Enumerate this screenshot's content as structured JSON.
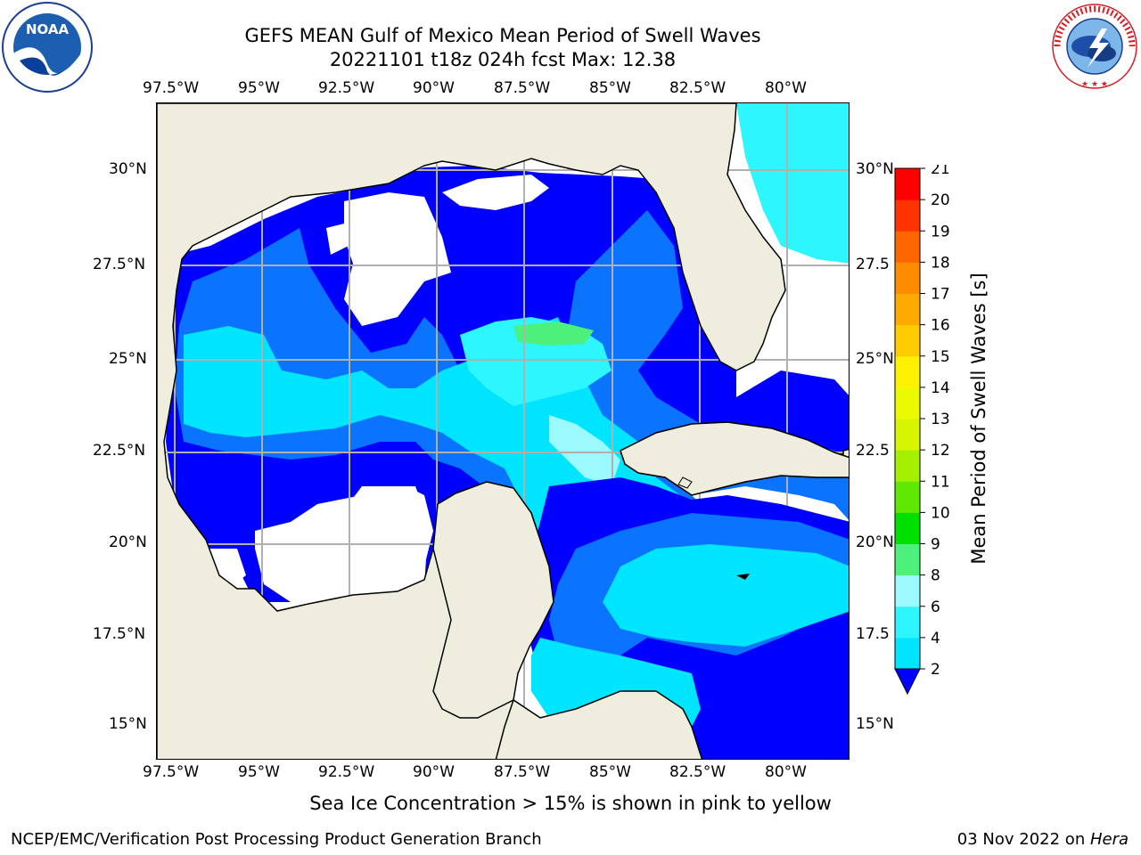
{
  "title": {
    "line1": "GEFS MEAN Gulf of Mexico Mean Period of Swell Waves",
    "line2": "20221101 t18z 024h fcst   Max: 12.38"
  },
  "logos": {
    "left": {
      "icon": "noaa-logo",
      "text": "NOAA"
    },
    "right": {
      "icon": "nws-logo",
      "text": "NATIONAL WEATHER SERVICE"
    }
  },
  "map": {
    "lon_ticks": [
      "97.5°W",
      "95°W",
      "92.5°W",
      "90°W",
      "87.5°W",
      "85°W",
      "82.5°W",
      "80°W"
    ],
    "lat_ticks_left": [
      "30°N",
      "27.5°N",
      "25°N",
      "22.5°N",
      "20°N",
      "17.5°N",
      "15°N"
    ],
    "lat_ticks_right": [
      "30°N",
      "27.5",
      "25°N",
      "22.5",
      "20°N",
      "17.5",
      "15°N"
    ],
    "land_color": "#efedde",
    "grid_color": "#b0b0b0"
  },
  "colorbar": {
    "label": "Mean Period of Swell Waves [s]",
    "ticks": [
      "2",
      "4",
      "6",
      "8",
      "9",
      "10",
      "11",
      "12",
      "13",
      "14",
      "15",
      "16",
      "17",
      "18",
      "19",
      "20",
      "21"
    ],
    "colors": [
      "#0a74ff",
      "#00e5ff",
      "#2ef6ff",
      "#9bfaff",
      "#4cf07a",
      "#00e000",
      "#5fe800",
      "#a5f000",
      "#d7f500",
      "#ecfa00",
      "#fff200",
      "#ffcc00",
      "#ffaa00",
      "#ff8c00",
      "#ff6600",
      "#ff3300",
      "#ff0000"
    ],
    "under_color": "#0000ff"
  },
  "note": "Sea Ice Concentration > 15% is shown in pink to yellow",
  "footer": {
    "left": "NCEP/EMC/Verification Post Processing Product Generation Branch",
    "right_date": "03 Nov 2022 on ",
    "right_host": "Hera"
  }
}
